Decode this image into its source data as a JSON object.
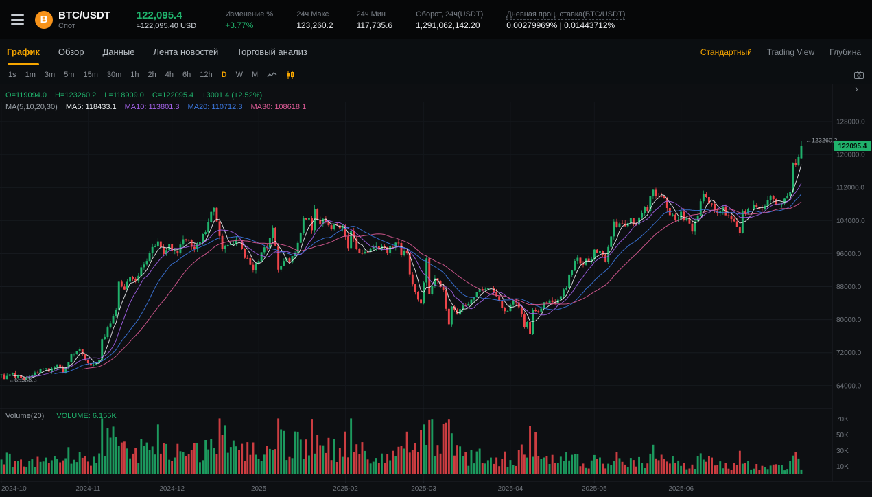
{
  "header": {
    "symbol": "BTC/USDT",
    "market_type": "Спот",
    "last_price": "122,095.4",
    "usd_price": "≈122,095.40 USD",
    "change_label": "Изменение %",
    "change_value": "+3.77%",
    "high_label": "24ч Макс",
    "high_value": "123,260.2",
    "low_label": "24ч Мин",
    "low_value": "117,735.6",
    "turnover_label": "Оборот, 24ч(USDT)",
    "turnover_value": "1,291,062,142.20",
    "funding_label": "Дневная проц. ставка(BTC/USDT)",
    "funding_value": "0.00279969% | 0.01443712%"
  },
  "tabs": {
    "items": [
      {
        "label": "График",
        "active": true
      },
      {
        "label": "Обзор",
        "active": false
      },
      {
        "label": "Данные",
        "active": false
      },
      {
        "label": "Лента новостей",
        "active": false
      },
      {
        "label": "Торговый анализ",
        "active": false
      }
    ],
    "right": [
      {
        "label": "Стандартный",
        "active": true
      },
      {
        "label": "Trading View",
        "active": false
      },
      {
        "label": "Глубина",
        "active": false
      }
    ]
  },
  "toolbar": {
    "intervals": [
      "1s",
      "1m",
      "3m",
      "5m",
      "15m",
      "30m",
      "1h",
      "2h",
      "4h",
      "6h",
      "12h",
      "D",
      "W",
      "M"
    ],
    "active_interval": "D"
  },
  "chart_data": {
    "type": "candlestick",
    "symbol": "BTC/USDT",
    "interval": "1D",
    "days": 287,
    "y_ticks": [
      128000,
      120000,
      112000,
      104000,
      96000,
      88000,
      80000,
      72000,
      64000
    ],
    "volume_ticks": [
      70,
      50,
      30,
      10
    ],
    "x_labels": [
      {
        "label": "2024-10",
        "day": 0
      },
      {
        "label": "2024-11",
        "day": 31
      },
      {
        "label": "2024-12",
        "day": 61
      },
      {
        "label": "2025",
        "day": 92
      },
      {
        "label": "2025-02",
        "day": 123
      },
      {
        "label": "2025-03",
        "day": 151
      },
      {
        "label": "2025-04",
        "day": 182
      },
      {
        "label": "2025-05",
        "day": 212
      },
      {
        "label": "2025-06",
        "day": 243
      }
    ],
    "legend": {
      "o": "O=119094.0",
      "h": "H=123260.2",
      "l": "L=118909.0",
      "c": "C=122095.4",
      "chg": "+3001.4 (+2.52%)",
      "ma_title": "MA(5,10,20,30)",
      "ma5": "MA5: 118433.1",
      "ma10": "MA10: 113801.3",
      "ma20": "MA20: 110712.3",
      "ma30": "MA30: 108618.1"
    },
    "volume_legend": {
      "title": "Volume(20)",
      "value": "VOLUME: 6.155K"
    },
    "markers": {
      "high": "123260.2",
      "low": "65568.3",
      "current": "122095.4"
    },
    "last": {
      "open": 119094.0,
      "high": 123260.2,
      "low": 118909.0,
      "close": 122095.4,
      "volume": 6155
    },
    "range_high": 123260.2,
    "range_low": 65568.3,
    "colors": {
      "up": "#20b26c",
      "down": "#ef454a",
      "ma5": "#e8eaec",
      "ma10": "#a362e8",
      "ma20": "#3c78e0",
      "ma30": "#dd5b96"
    },
    "close_waypoints": [
      [
        0,
        66300
      ],
      [
        1,
        65700
      ],
      [
        3,
        66900
      ],
      [
        5,
        66300
      ],
      [
        8,
        65800
      ],
      [
        10,
        66400
      ],
      [
        13,
        67300
      ],
      [
        15,
        68400
      ],
      [
        17,
        67500
      ],
      [
        20,
        69000
      ],
      [
        22,
        67400
      ],
      [
        25,
        71300
      ],
      [
        28,
        72700
      ],
      [
        30,
        70300
      ],
      [
        31,
        69500
      ],
      [
        33,
        68800
      ],
      [
        35,
        70200
      ],
      [
        36,
        75600
      ],
      [
        37,
        76000
      ],
      [
        39,
        79500
      ],
      [
        41,
        82200
      ],
      [
        42,
        88700
      ],
      [
        44,
        87300
      ],
      [
        46,
        91000
      ],
      [
        48,
        89900
      ],
      [
        50,
        92300
      ],
      [
        52,
        94800
      ],
      [
        55,
        98300
      ],
      [
        56,
        99000
      ],
      [
        58,
        95700
      ],
      [
        60,
        97700
      ],
      [
        61,
        96400
      ],
      [
        63,
        95800
      ],
      [
        65,
        99900
      ],
      [
        67,
        99000
      ],
      [
        69,
        97300
      ],
      [
        71,
        99400
      ],
      [
        73,
        101100
      ],
      [
        75,
        106100
      ],
      [
        76,
        106700
      ],
      [
        78,
        100000
      ],
      [
        79,
        97500
      ],
      [
        81,
        97800
      ],
      [
        83,
        98700
      ],
      [
        85,
        99400
      ],
      [
        87,
        95200
      ],
      [
        89,
        93700
      ],
      [
        90,
        92600
      ],
      [
        92,
        94500
      ],
      [
        94,
        96900
      ],
      [
        96,
        99200
      ],
      [
        97,
        102100
      ],
      [
        99,
        92500
      ],
      [
        101,
        94300
      ],
      [
        103,
        94500
      ],
      [
        105,
        96600
      ],
      [
        107,
        100500
      ],
      [
        108,
        104000
      ],
      [
        110,
        104800
      ],
      [
        111,
        102300
      ],
      [
        112,
        106100
      ],
      [
        114,
        103700
      ],
      [
        115,
        104800
      ],
      [
        117,
        102800
      ],
      [
        118,
        102100
      ],
      [
        120,
        103300
      ],
      [
        122,
        102400
      ],
      [
        123,
        100600
      ],
      [
        124,
        97700
      ],
      [
        125,
        101400
      ],
      [
        127,
        96600
      ],
      [
        129,
        96500
      ],
      [
        131,
        96400
      ],
      [
        133,
        97900
      ],
      [
        135,
        96600
      ],
      [
        136,
        97500
      ],
      [
        138,
        96500
      ],
      [
        140,
        98300
      ],
      [
        142,
        98500
      ],
      [
        143,
        96100
      ],
      [
        145,
        95800
      ],
      [
        146,
        91400
      ],
      [
        147,
        88600
      ],
      [
        149,
        84700
      ],
      [
        150,
        84300
      ],
      [
        152,
        94300
      ],
      [
        153,
        86000
      ],
      [
        155,
        90600
      ],
      [
        156,
        89900
      ],
      [
        158,
        86800
      ],
      [
        160,
        78600
      ],
      [
        161,
        82900
      ],
      [
        163,
        81100
      ],
      [
        165,
        83700
      ],
      [
        167,
        84000
      ],
      [
        169,
        85800
      ],
      [
        171,
        87500
      ],
      [
        174,
        87500
      ],
      [
        176,
        86900
      ],
      [
        178,
        84400
      ],
      [
        180,
        82400
      ],
      [
        181,
        82500
      ],
      [
        183,
        85200
      ],
      [
        185,
        83200
      ],
      [
        187,
        78200
      ],
      [
        188,
        79200
      ],
      [
        189,
        76300
      ],
      [
        190,
        82600
      ],
      [
        192,
        81500
      ],
      [
        194,
        83700
      ],
      [
        196,
        84600
      ],
      [
        197,
        84000
      ],
      [
        199,
        85200
      ],
      [
        201,
        87300
      ],
      [
        202,
        87500
      ],
      [
        203,
        91200
      ],
      [
        205,
        93700
      ],
      [
        206,
        94700
      ],
      [
        208,
        93800
      ],
      [
        210,
        94600
      ],
      [
        211,
        94200
      ],
      [
        212,
        96500
      ],
      [
        214,
        96900
      ],
      [
        216,
        94300
      ],
      [
        218,
        99700
      ],
      [
        219,
        103300
      ],
      [
        221,
        102900
      ],
      [
        223,
        102800
      ],
      [
        225,
        104200
      ],
      [
        227,
        103200
      ],
      [
        229,
        106500
      ],
      [
        231,
        106800
      ],
      [
        232,
        109700
      ],
      [
        233,
        111700
      ],
      [
        235,
        109300
      ],
      [
        237,
        109400
      ],
      [
        239,
        105600
      ],
      [
        241,
        103900
      ],
      [
        243,
        105600
      ],
      [
        245,
        104000
      ],
      [
        247,
        101600
      ],
      [
        249,
        105700
      ],
      [
        251,
        110200
      ],
      [
        253,
        108600
      ],
      [
        255,
        106100
      ],
      [
        257,
        105500
      ],
      [
        258,
        106800
      ],
      [
        260,
        104700
      ],
      [
        262,
        103400
      ],
      [
        264,
        100900
      ],
      [
        265,
        105600
      ],
      [
        266,
        106000
      ],
      [
        268,
        107300
      ],
      [
        270,
        107300
      ],
      [
        272,
        107100
      ],
      [
        274,
        108900
      ],
      [
        275,
        109600
      ],
      [
        277,
        108100
      ],
      [
        279,
        108300
      ],
      [
        280,
        108900
      ],
      [
        281,
        110300
      ],
      [
        282,
        111300
      ],
      [
        283,
        117500
      ],
      [
        284,
        117400
      ],
      [
        285,
        119100
      ],
      [
        286,
        122095.4
      ]
    ],
    "volume_waypoints": [
      [
        0,
        16
      ],
      [
        5,
        20
      ],
      [
        10,
        13
      ],
      [
        15,
        22
      ],
      [
        20,
        17
      ],
      [
        25,
        26
      ],
      [
        30,
        19
      ],
      [
        35,
        30
      ],
      [
        36,
        48
      ],
      [
        38,
        40
      ],
      [
        42,
        58
      ],
      [
        44,
        42
      ],
      [
        48,
        30
      ],
      [
        52,
        34
      ],
      [
        56,
        40
      ],
      [
        60,
        28
      ],
      [
        65,
        38
      ],
      [
        70,
        30
      ],
      [
        75,
        42
      ],
      [
        78,
        52
      ],
      [
        82,
        30
      ],
      [
        86,
        26
      ],
      [
        90,
        28
      ],
      [
        93,
        34
      ],
      [
        97,
        44
      ],
      [
        99,
        68
      ],
      [
        103,
        30
      ],
      [
        108,
        40
      ],
      [
        111,
        52
      ],
      [
        114,
        34
      ],
      [
        118,
        36
      ],
      [
        122,
        28
      ],
      [
        124,
        46
      ],
      [
        125,
        64
      ],
      [
        127,
        40
      ],
      [
        131,
        24
      ],
      [
        135,
        20
      ],
      [
        139,
        22
      ],
      [
        143,
        26
      ],
      [
        146,
        40
      ],
      [
        149,
        52
      ],
      [
        150,
        46
      ],
      [
        152,
        60
      ],
      [
        155,
        36
      ],
      [
        160,
        44
      ],
      [
        163,
        28
      ],
      [
        167,
        20
      ],
      [
        171,
        22
      ],
      [
        175,
        16
      ],
      [
        179,
        18
      ],
      [
        183,
        20
      ],
      [
        187,
        30
      ],
      [
        189,
        46
      ],
      [
        190,
        38
      ],
      [
        193,
        24
      ],
      [
        197,
        16
      ],
      [
        201,
        18
      ],
      [
        203,
        26
      ],
      [
        206,
        22
      ],
      [
        210,
        14
      ],
      [
        212,
        16
      ],
      [
        216,
        12
      ],
      [
        219,
        24
      ],
      [
        223,
        16
      ],
      [
        227,
        14
      ],
      [
        231,
        18
      ],
      [
        233,
        26
      ],
      [
        237,
        14
      ],
      [
        241,
        16
      ],
      [
        243,
        12
      ],
      [
        247,
        14
      ],
      [
        251,
        18
      ],
      [
        255,
        12
      ],
      [
        258,
        10
      ],
      [
        262,
        12
      ],
      [
        264,
        22
      ],
      [
        268,
        10
      ],
      [
        272,
        8
      ],
      [
        275,
        12
      ],
      [
        279,
        8
      ],
      [
        282,
        14
      ],
      [
        283,
        22
      ],
      [
        285,
        16
      ],
      [
        286,
        6.155
      ]
    ]
  }
}
